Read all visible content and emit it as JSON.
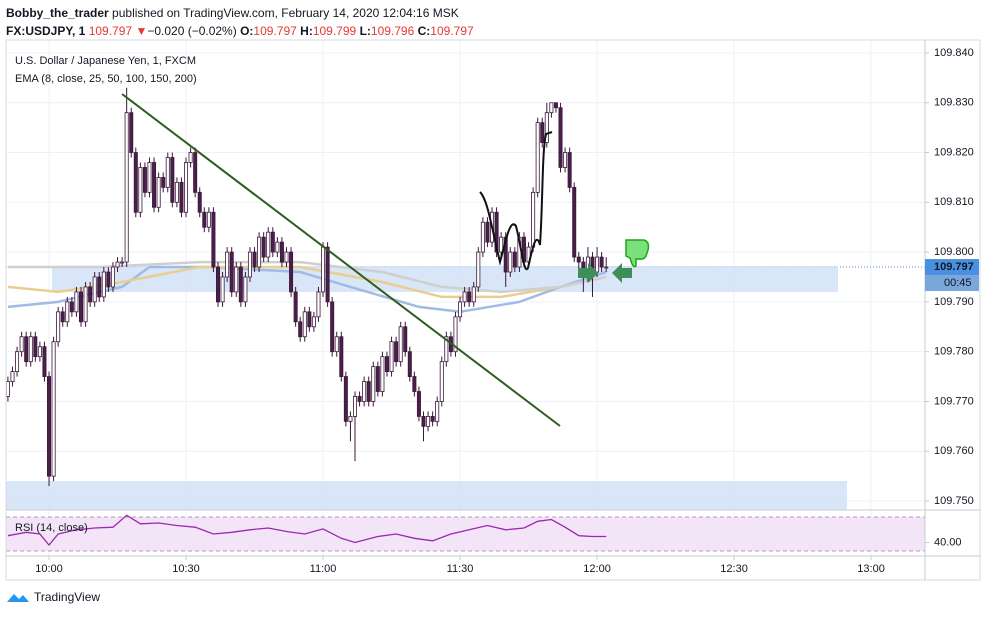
{
  "header": {
    "author": "Bobby_the_trader",
    "published": "published on TradingView.com, February 14, 2020 12:04:16 MSK",
    "symbol": "FX:USDJPY, 1",
    "price": 109.797,
    "arrow": "▼",
    "change": "−0.020 (−0.02%)",
    "o_label": "O:",
    "o": 109.797,
    "h_label": "H:",
    "h": 109.799,
    "l_label": "L:",
    "l": 109.796,
    "c_label": "C:",
    "c": 109.797
  },
  "footer": "TradingView",
  "chart_data": {
    "type": "candlestick",
    "title": "U.S. Dollar / Japanese Yen, 1, FXCM",
    "indicator": "EMA (8, close, 25, 50, 100, 150, 200)",
    "rsi_title": "RSI (14, close)",
    "up_color": "#ffffff",
    "down_color": "#4a1f4a",
    "wick_color": "#3a183a",
    "xlim": [
      590.58,
      791.81
    ],
    "xticks": [
      {
        "value": 600,
        "label": "10:00"
      },
      {
        "value": 630,
        "label": "10:30"
      },
      {
        "value": 660,
        "label": "11:00"
      },
      {
        "value": 690,
        "label": "11:30"
      },
      {
        "value": 720,
        "label": "12:00"
      },
      {
        "value": 750,
        "label": "12:30"
      },
      {
        "value": 780,
        "label": "13:00"
      }
    ],
    "ylim": [
      109.7482,
      109.8426
    ],
    "yticks": [
      {
        "value": 109.75,
        "label": "109.750"
      },
      {
        "value": 109.76,
        "label": "109.760"
      },
      {
        "value": 109.77,
        "label": "109.770"
      },
      {
        "value": 109.78,
        "label": "109.780"
      },
      {
        "value": 109.79,
        "label": "109.790"
      },
      {
        "value": 109.8,
        "label": "109.800"
      },
      {
        "value": 109.81,
        "label": "109.810"
      },
      {
        "value": 109.82,
        "label": "109.820"
      },
      {
        "value": 109.83,
        "label": "109.830"
      },
      {
        "value": 109.84,
        "label": "109.840"
      }
    ],
    "grid": true,
    "last_price": 109.797,
    "last_price_color": "#4a90e2",
    "countdown": "00:45",
    "x": [
      591,
      592,
      593,
      594,
      595,
      596,
      597,
      598,
      599,
      600,
      601,
      602,
      603,
      604,
      605,
      606,
      607,
      608,
      609,
      610,
      611,
      612,
      613,
      614,
      615,
      616,
      617,
      618,
      619,
      620,
      621,
      622,
      623,
      624,
      625,
      626,
      627,
      628,
      629,
      630,
      631,
      632,
      633,
      634,
      635,
      636,
      637,
      638,
      639,
      640,
      641,
      642,
      643,
      644,
      645,
      646,
      647,
      648,
      649,
      650,
      651,
      652,
      653,
      654,
      655,
      656,
      657,
      658,
      659,
      660,
      661,
      662,
      663,
      664,
      665,
      666,
      667,
      668,
      669,
      670,
      671,
      672,
      673,
      674,
      675,
      676,
      677,
      678,
      679,
      680,
      681,
      682,
      683,
      684,
      685,
      686,
      687,
      688,
      689,
      690,
      691,
      692,
      693,
      694,
      695,
      696,
      697,
      698,
      699,
      700,
      701,
      702,
      703,
      704,
      705,
      706,
      707,
      708,
      709,
      710,
      711,
      712,
      713,
      714,
      715,
      716,
      717,
      718,
      719,
      720,
      721,
      722
    ],
    "open": [
      109.771,
      109.774,
      109.776,
      109.78,
      109.783,
      109.778,
      109.783,
      109.779,
      109.781,
      109.775,
      109.755,
      109.782,
      109.788,
      109.786,
      109.79,
      109.788,
      109.792,
      109.786,
      109.793,
      109.79,
      109.795,
      109.791,
      109.796,
      109.793,
      109.797,
      109.798,
      109.798,
      109.828,
      109.82,
      109.808,
      109.817,
      109.812,
      109.818,
      109.809,
      109.815,
      109.813,
      109.819,
      109.81,
      109.814,
      109.808,
      109.818,
      109.82,
      109.812,
      109.808,
      109.805,
      109.808,
      109.797,
      109.79,
      109.795,
      109.8,
      109.792,
      109.797,
      109.79,
      109.795,
      109.8,
      109.797,
      109.803,
      109.799,
      109.804,
      109.8,
      109.802,
      109.798,
      109.8,
      109.792,
      109.786,
      109.783,
      109.788,
      109.785,
      109.787,
      109.792,
      109.801,
      109.79,
      109.78,
      109.783,
      109.775,
      109.766,
      109.767,
      109.771,
      109.77,
      109.774,
      109.77,
      109.777,
      109.772,
      109.779,
      109.776,
      109.782,
      109.778,
      109.785,
      109.78,
      109.775,
      109.772,
      109.767,
      109.765,
      109.767,
      109.766,
      109.77,
      109.778,
      109.783,
      109.78,
      109.787,
      109.79,
      109.792,
      109.79,
      109.793,
      109.8,
      109.806,
      109.802,
      109.808,
      109.8,
      109.803,
      109.796,
      109.8,
      109.797,
      109.803,
      109.798,
      109.801,
      109.812,
      109.826,
      109.822,
      109.828,
      109.83,
      109.829,
      109.817,
      109.82,
      109.813,
      109.799,
      109.798,
      109.795,
      109.799,
      109.796,
      109.799,
      109.797
    ],
    "high": [
      109.775,
      109.777,
      109.781,
      109.784,
      109.784,
      109.784,
      109.784,
      109.782,
      109.782,
      109.776,
      109.783,
      109.789,
      109.789,
      109.791,
      109.791,
      109.793,
      109.793,
      109.794,
      109.794,
      109.796,
      109.796,
      109.797,
      109.797,
      109.798,
      109.799,
      109.799,
      109.833,
      109.829,
      109.821,
      109.818,
      109.818,
      109.819,
      109.819,
      109.816,
      109.816,
      109.82,
      109.82,
      109.815,
      109.815,
      109.819,
      109.821,
      109.821,
      109.813,
      109.809,
      109.809,
      109.809,
      109.798,
      109.796,
      109.801,
      109.801,
      109.798,
      109.798,
      109.796,
      109.801,
      109.801,
      109.804,
      109.804,
      109.805,
      109.805,
      109.803,
      109.803,
      109.801,
      109.801,
      109.793,
      109.787,
      109.789,
      109.789,
      109.788,
      109.793,
      109.802,
      109.802,
      109.791,
      109.784,
      109.784,
      109.776,
      109.768,
      109.772,
      109.772,
      109.775,
      109.775,
      109.778,
      109.778,
      109.78,
      109.78,
      109.783,
      109.783,
      109.786,
      109.786,
      109.781,
      109.776,
      109.773,
      109.768,
      109.768,
      109.768,
      109.771,
      109.779,
      109.784,
      109.784,
      109.788,
      109.791,
      109.793,
      109.793,
      109.794,
      109.801,
      109.807,
      109.807,
      109.809,
      109.809,
      109.804,
      109.804,
      109.801,
      109.801,
      109.804,
      109.804,
      109.802,
      109.813,
      109.827,
      109.827,
      109.83,
      109.83,
      109.83,
      109.83,
      109.821,
      109.821,
      109.814,
      109.8,
      109.799,
      109.801,
      109.8,
      109.801,
      109.8,
      109.799
    ],
    "low": [
      109.77,
      109.773,
      109.775,
      109.779,
      109.777,
      109.777,
      109.778,
      109.778,
      109.774,
      109.753,
      109.754,
      109.781,
      109.785,
      109.785,
      109.787,
      109.787,
      109.785,
      109.785,
      109.789,
      109.789,
      109.79,
      109.79,
      109.792,
      109.792,
      109.796,
      109.797,
      109.797,
      109.819,
      109.807,
      109.807,
      109.811,
      109.811,
      109.808,
      109.808,
      109.812,
      109.812,
      109.809,
      109.809,
      109.807,
      109.807,
      109.817,
      109.811,
      109.807,
      109.804,
      109.804,
      109.796,
      109.789,
      109.789,
      109.794,
      109.791,
      109.791,
      109.789,
      109.789,
      109.794,
      109.796,
      109.796,
      109.798,
      109.798,
      109.799,
      109.799,
      109.797,
      109.797,
      109.791,
      109.785,
      109.782,
      109.782,
      109.784,
      109.784,
      109.786,
      109.791,
      109.789,
      109.779,
      109.779,
      109.774,
      109.765,
      109.762,
      109.758,
      109.769,
      109.769,
      109.769,
      109.769,
      109.771,
      109.771,
      109.775,
      109.775,
      109.777,
      109.777,
      109.779,
      109.774,
      109.771,
      109.766,
      109.762,
      109.764,
      109.765,
      109.765,
      109.769,
      109.777,
      109.779,
      109.779,
      109.786,
      109.789,
      109.789,
      109.789,
      109.792,
      109.799,
      109.801,
      109.801,
      109.799,
      109.799,
      109.793,
      109.795,
      109.796,
      109.796,
      109.797,
      109.797,
      109.8,
      109.811,
      109.821,
      109.821,
      109.827,
      109.828,
      109.816,
      109.816,
      109.812,
      109.798,
      109.796,
      109.792,
      109.794,
      109.791,
      109.795,
      109.796,
      109.796
    ],
    "close": [
      109.774,
      109.776,
      109.78,
      109.783,
      109.778,
      109.783,
      109.779,
      109.781,
      109.775,
      109.755,
      109.782,
      109.788,
      109.786,
      109.79,
      109.788,
      109.792,
      109.786,
      109.793,
      109.79,
      109.795,
      109.791,
      109.796,
      109.793,
      109.797,
      109.798,
      109.798,
      109.828,
      109.82,
      109.808,
      109.817,
      109.812,
      109.818,
      109.809,
      109.815,
      109.813,
      109.819,
      109.81,
      109.814,
      109.808,
      109.818,
      109.82,
      109.812,
      109.808,
      109.805,
      109.808,
      109.797,
      109.79,
      109.795,
      109.8,
      109.792,
      109.797,
      109.79,
      109.795,
      109.8,
      109.797,
      109.803,
      109.799,
      109.804,
      109.8,
      109.802,
      109.798,
      109.8,
      109.792,
      109.786,
      109.783,
      109.788,
      109.785,
      109.787,
      109.792,
      109.801,
      109.79,
      109.78,
      109.783,
      109.775,
      109.766,
      109.767,
      109.771,
      109.77,
      109.774,
      109.77,
      109.777,
      109.772,
      109.779,
      109.776,
      109.782,
      109.778,
      109.785,
      109.78,
      109.775,
      109.772,
      109.767,
      109.765,
      109.767,
      109.766,
      109.77,
      109.778,
      109.783,
      109.78,
      109.787,
      109.79,
      109.792,
      109.79,
      109.793,
      109.8,
      109.806,
      109.802,
      109.808,
      109.8,
      109.803,
      109.796,
      109.8,
      109.797,
      109.803,
      109.798,
      109.801,
      109.812,
      109.826,
      109.822,
      109.828,
      109.83,
      109.829,
      109.817,
      109.82,
      109.813,
      109.799,
      109.798,
      109.795,
      109.799,
      109.796,
      109.799,
      109.797,
      109.797
    ],
    "ema": [
      {
        "color": "#9fbbe6",
        "x": [
          591,
          602,
          616,
          622,
          635,
          655,
          666,
          681,
          690,
          703,
          712,
          722
        ],
        "values": [
          109.789,
          109.79,
          109.793,
          109.797,
          109.797,
          109.796,
          109.793,
          109.789,
          109.788,
          109.79,
          109.793,
          109.796
        ]
      },
      {
        "color": "#e9cf8f",
        "x": [
          591,
          602,
          616,
          633,
          655,
          673,
          686,
          699,
          712,
          722
        ],
        "values": [
          109.793,
          109.792,
          109.794,
          109.797,
          109.797,
          109.794,
          109.791,
          109.791,
          109.793,
          109.795
        ]
      },
      {
        "color": "#cfcfcf",
        "x": [
          591,
          611,
          633,
          655,
          673,
          686,
          699,
          712,
          722
        ],
        "values": [
          109.797,
          109.797,
          109.798,
          109.798,
          109.796,
          109.793,
          109.792,
          109.793,
          109.795
        ]
      }
    ],
    "rsi": {
      "color": "#9c27b0",
      "ylim": [
        20,
        80
      ],
      "yticks": [
        {
          "value": 40,
          "label": "40.00"
        }
      ],
      "x": [
        591,
        595,
        598,
        600,
        602,
        606,
        610,
        614,
        617,
        620,
        624,
        628,
        632,
        636,
        640,
        644,
        648,
        652,
        656,
        660,
        664,
        667,
        672,
        676,
        680,
        684,
        688,
        692,
        696,
        700,
        704,
        707,
        710,
        713,
        716,
        719,
        722
      ],
      "values": [
        48,
        52,
        50,
        37,
        50,
        55,
        57,
        58,
        72,
        62,
        63,
        60,
        58,
        50,
        52,
        55,
        57,
        53,
        50,
        56,
        45,
        40,
        47,
        50,
        45,
        42,
        50,
        55,
        60,
        55,
        57,
        65,
        67,
        58,
        48,
        47,
        47
      ]
    }
  }
}
